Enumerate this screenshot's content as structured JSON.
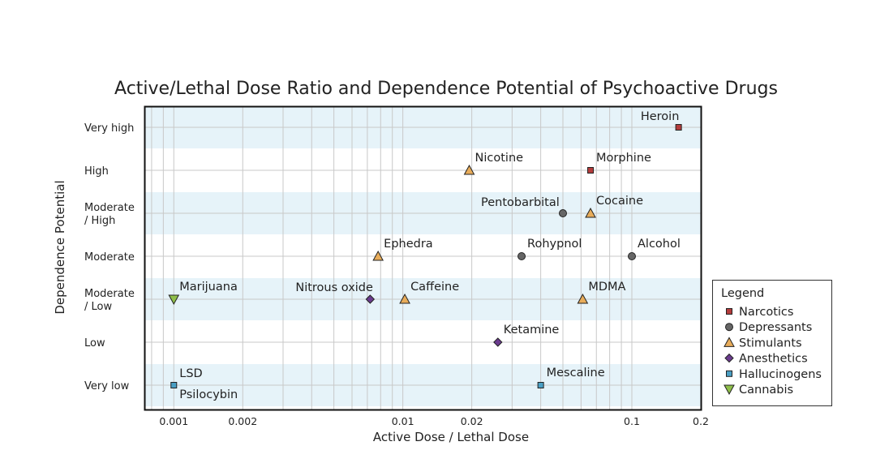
{
  "chart_data": {
    "type": "scatter",
    "title": "Active/Lethal Dose Ratio and Dependence Potential of Psychoactive Drugs",
    "xlabel": "Active Dose / Lethal Dose",
    "ylabel": "Dependence Potential",
    "x_scale": "log",
    "xlim": [
      0.00075,
      0.2
    ],
    "x_ticks": [
      0.001,
      0.002,
      0.01,
      0.02,
      0.1,
      0.2
    ],
    "x_tick_labels": [
      "0.001",
      "0.002",
      "0.01",
      "0.02",
      "0.1",
      "0.2"
    ],
    "y_categories": [
      {
        "label": "Very low",
        "value": 1
      },
      {
        "label": "Low",
        "value": 2
      },
      {
        "label": "Moderate\n/ Low",
        "value": 3
      },
      {
        "label": "Moderate",
        "value": 4
      },
      {
        "label": "Moderate\n/ High",
        "value": 5
      },
      {
        "label": "High",
        "value": 6
      },
      {
        "label": "Very high",
        "value": 7
      }
    ],
    "grid": true,
    "legend": {
      "title": "Legend",
      "placement": "right",
      "entries": [
        {
          "name": "Narcotics",
          "marker": "square",
          "color": "#b43c3c"
        },
        {
          "name": "Depressants",
          "marker": "circle",
          "color": "#666666"
        },
        {
          "name": "Stimulants",
          "marker": "triangle-up",
          "color": "#e8ac5a"
        },
        {
          "name": "Anesthetics",
          "marker": "diamond",
          "color": "#6a3b8e"
        },
        {
          "name": "Hallucinogens",
          "marker": "square",
          "color": "#4a9fc4"
        },
        {
          "name": "Cannabis",
          "marker": "triangle-down",
          "color": "#8fbf4a"
        }
      ]
    },
    "points": [
      {
        "label": "Heroin",
        "x": 0.16,
        "y": 7,
        "group": "Narcotics"
      },
      {
        "label": "Morphine",
        "x": 0.066,
        "y": 6,
        "group": "Narcotics"
      },
      {
        "label": "Nicotine",
        "x": 0.0195,
        "y": 6,
        "group": "Stimulants"
      },
      {
        "label": "Cocaine",
        "x": 0.066,
        "y": 5,
        "group": "Stimulants"
      },
      {
        "label": "Pentobarbital",
        "x": 0.05,
        "y": 5,
        "group": "Depressants"
      },
      {
        "label": "Ephedra",
        "x": 0.0078,
        "y": 4,
        "group": "Stimulants"
      },
      {
        "label": "Rohypnol",
        "x": 0.033,
        "y": 4,
        "group": "Depressants"
      },
      {
        "label": "Alcohol",
        "x": 0.1,
        "y": 4,
        "group": "Depressants"
      },
      {
        "label": "Marijuana",
        "x": 0.001,
        "y": 3,
        "group": "Cannabis"
      },
      {
        "label": "Nitrous oxide",
        "x": 0.0072,
        "y": 3,
        "group": "Anesthetics"
      },
      {
        "label": "Caffeine",
        "x": 0.0102,
        "y": 3,
        "group": "Stimulants"
      },
      {
        "label": "MDMA",
        "x": 0.061,
        "y": 3,
        "group": "Stimulants"
      },
      {
        "label": "Ketamine",
        "x": 0.026,
        "y": 2,
        "group": "Anesthetics"
      },
      {
        "label": "LSD",
        "x": 0.001,
        "y": 1,
        "group": "Hallucinogens"
      },
      {
        "label": "Psilocybin",
        "x": 0.001,
        "y": 1,
        "group": "Hallucinogens"
      },
      {
        "label": "Mescaline",
        "x": 0.04,
        "y": 1,
        "group": "Hallucinogens"
      }
    ]
  }
}
